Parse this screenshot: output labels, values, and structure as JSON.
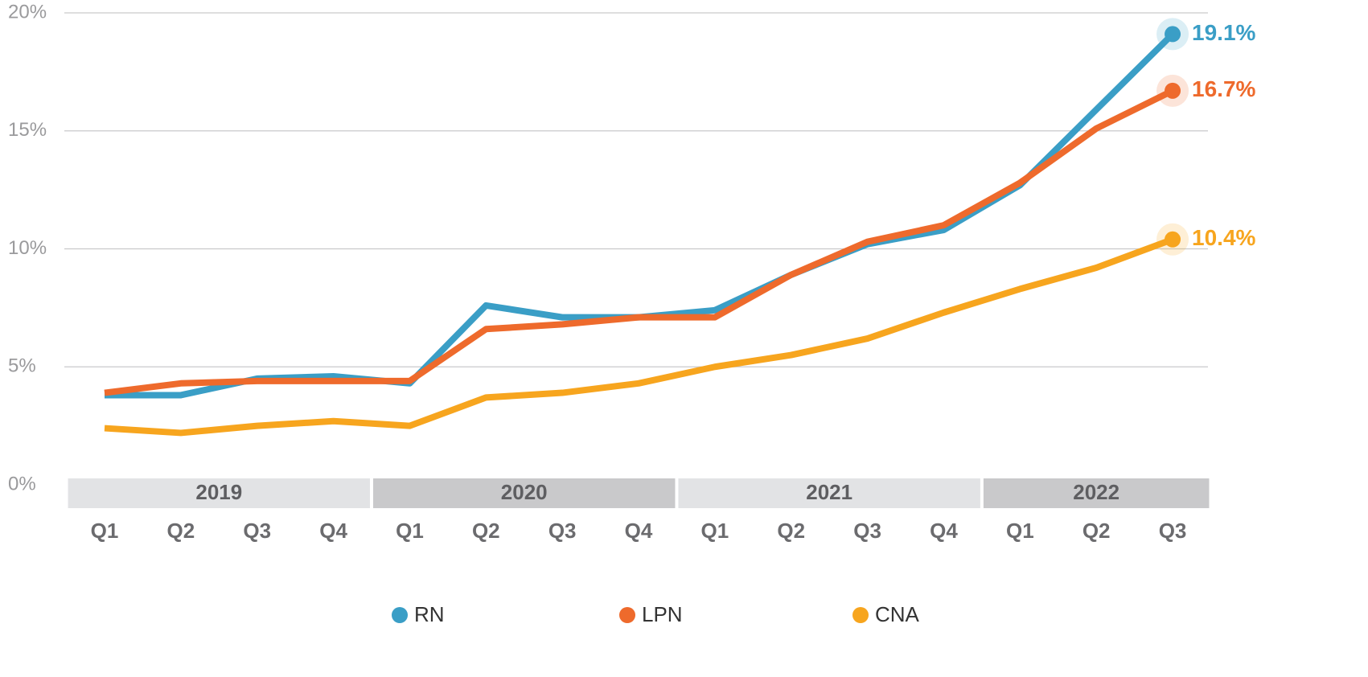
{
  "chart_data": {
    "type": "line",
    "x": [
      {
        "year": "2019",
        "quarter": "Q1"
      },
      {
        "year": "2019",
        "quarter": "Q2"
      },
      {
        "year": "2019",
        "quarter": "Q3"
      },
      {
        "year": "2019",
        "quarter": "Q4"
      },
      {
        "year": "2020",
        "quarter": "Q1"
      },
      {
        "year": "2020",
        "quarter": "Q2"
      },
      {
        "year": "2020",
        "quarter": "Q3"
      },
      {
        "year": "2020",
        "quarter": "Q4"
      },
      {
        "year": "2021",
        "quarter": "Q1"
      },
      {
        "year": "2021",
        "quarter": "Q2"
      },
      {
        "year": "2021",
        "quarter": "Q3"
      },
      {
        "year": "2021",
        "quarter": "Q4"
      },
      {
        "year": "2022",
        "quarter": "Q1"
      },
      {
        "year": "2022",
        "quarter": "Q2"
      },
      {
        "year": "2022",
        "quarter": "Q3"
      }
    ],
    "series": [
      {
        "name": "RN",
        "color": "#3a9ec6",
        "values": [
          3.8,
          3.8,
          4.5,
          4.6,
          4.3,
          7.6,
          7.1,
          7.1,
          7.4,
          8.9,
          10.2,
          10.8,
          12.7,
          15.9,
          19.1
        ],
        "value_labels": [
          null,
          null,
          null,
          null,
          null,
          null,
          null,
          null,
          null,
          null,
          null,
          null,
          null,
          null,
          "19.1%"
        ]
      },
      {
        "name": "LPN",
        "color": "#ee6a2c",
        "values": [
          3.9,
          4.3,
          4.4,
          4.4,
          4.4,
          6.6,
          6.8,
          7.1,
          7.1,
          8.9,
          10.3,
          11.0,
          12.8,
          15.1,
          16.7
        ],
        "value_labels": [
          null,
          null,
          null,
          null,
          null,
          null,
          null,
          null,
          null,
          null,
          null,
          null,
          null,
          null,
          "16.7%"
        ]
      },
      {
        "name": "CNA",
        "color": "#f7a51e",
        "values": [
          2.4,
          2.2,
          2.5,
          2.7,
          2.5,
          3.7,
          3.9,
          4.3,
          5.0,
          5.5,
          6.2,
          7.3,
          8.3,
          9.2,
          10.4
        ],
        "value_labels": [
          null,
          null,
          null,
          null,
          null,
          null,
          null,
          null,
          null,
          null,
          null,
          null,
          null,
          null,
          "10.4%"
        ]
      }
    ],
    "ylim": [
      0,
      20
    ],
    "yticks": [
      {
        "value": 0,
        "label": "0%"
      },
      {
        "value": 5,
        "label": "5%"
      },
      {
        "value": 10,
        "label": "10%"
      },
      {
        "value": 15,
        "label": "15%"
      },
      {
        "value": 20,
        "label": "20%"
      }
    ],
    "grid": true,
    "legend": "bottom"
  }
}
